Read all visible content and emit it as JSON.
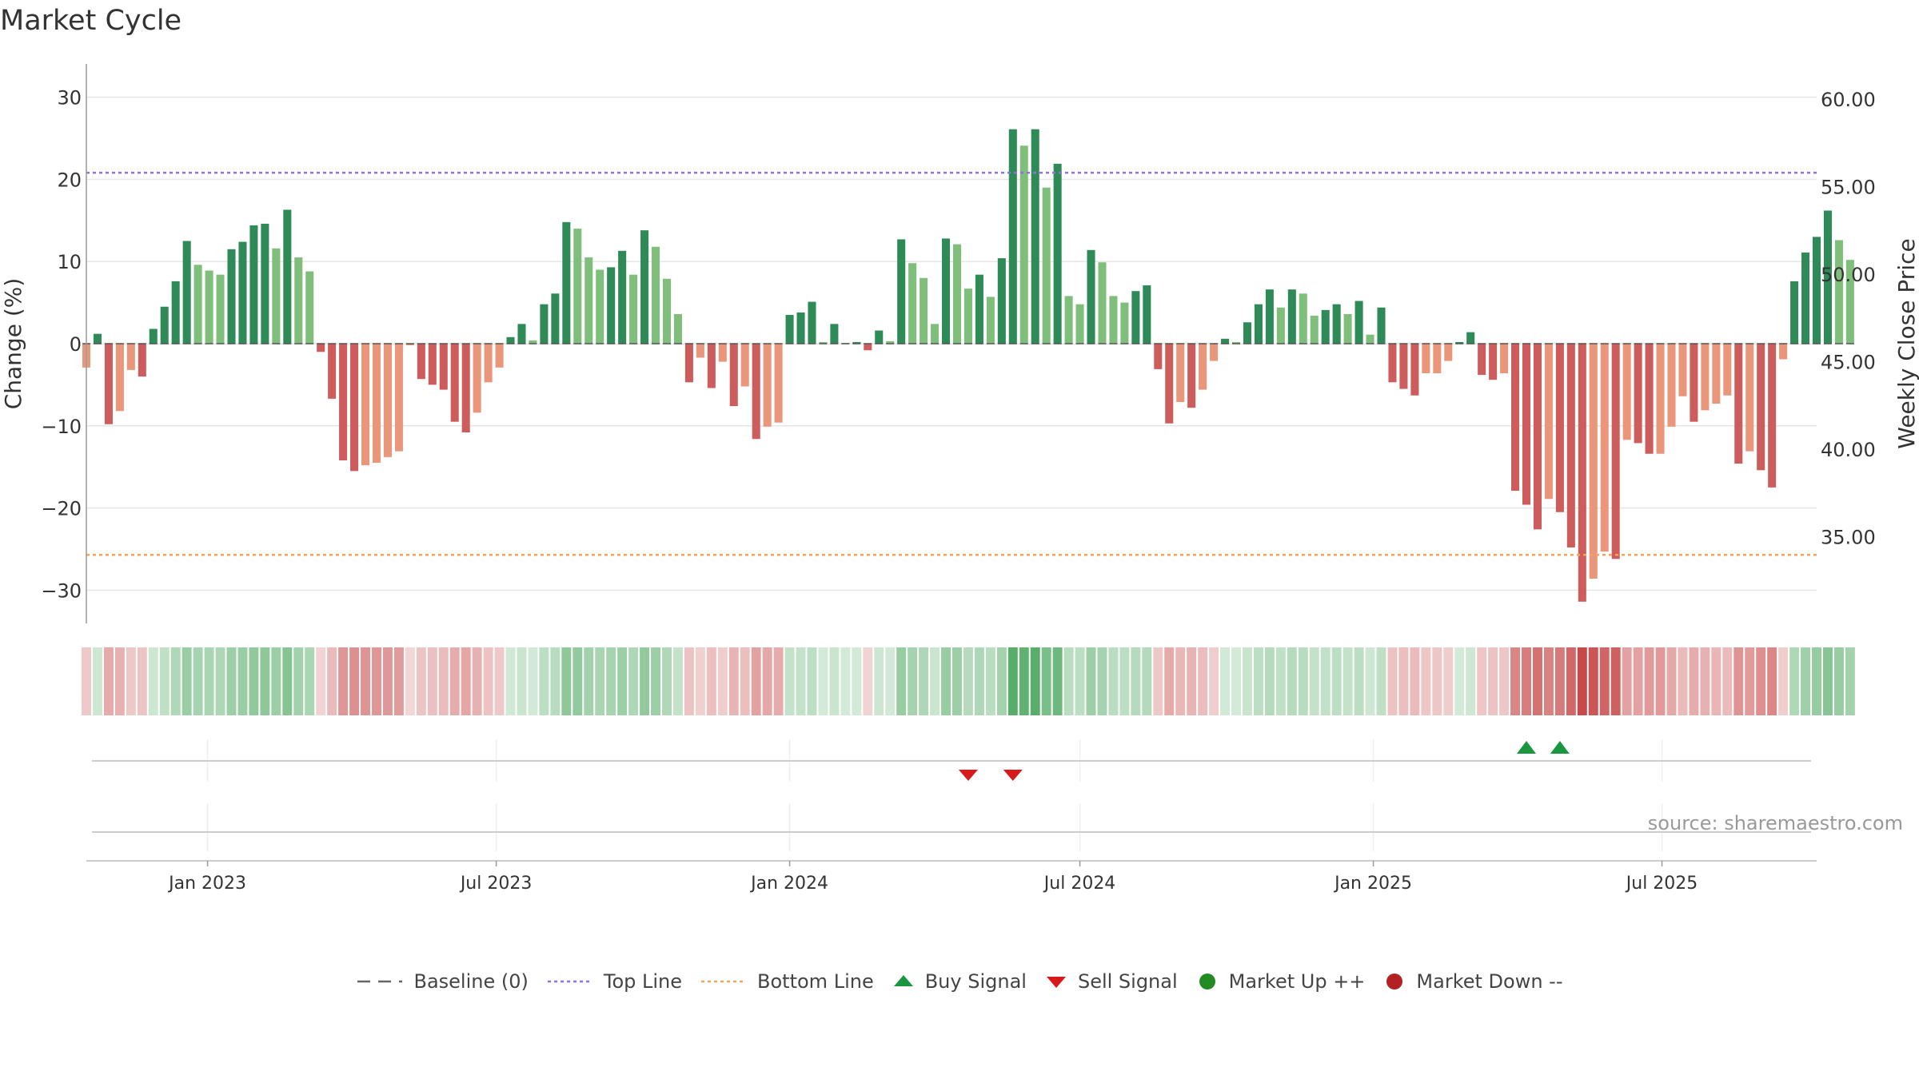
{
  "title": "Market Cycle",
  "source": "source: sharemaestro.com",
  "colors": {
    "up_dark": "#2e8b57",
    "up_light": "#7fbf7b",
    "down_dark": "#cd5c5c",
    "down_light": "#e9967a",
    "top_line": "#9370db",
    "bottom_line": "#f4a460",
    "buy": "#1a9641",
    "sell": "#d7191c",
    "market_up": "#228b22",
    "market_down": "#b22222"
  },
  "legend": [
    {
      "key": "baseline",
      "label": "Baseline (0)",
      "color": "#666666",
      "icon": "dash-line"
    },
    {
      "key": "top",
      "label": "Top Line",
      "color": "#9370db",
      "icon": "dotted-line"
    },
    {
      "key": "bottom",
      "label": "Bottom Line",
      "color": "#f4a460",
      "icon": "dotted-line"
    },
    {
      "key": "buy",
      "label": "Buy Signal",
      "color": "#1a9641",
      "icon": "triangle-up"
    },
    {
      "key": "sell",
      "label": "Sell Signal",
      "color": "#d7191c",
      "icon": "triangle-down"
    },
    {
      "key": "mup",
      "label": "Market Up ++",
      "color": "#228b22",
      "icon": "circle"
    },
    {
      "key": "mdown",
      "label": "Market Down --",
      "color": "#b22222",
      "icon": "circle"
    }
  ],
  "chart_data": {
    "type": "bar",
    "title": "Market Cycle",
    "ylabel": "Change (%)",
    "y2label": "Weekly Close Price",
    "ylim": [
      -34,
      34
    ],
    "y2lim": [
      33,
      62
    ],
    "yticks": [
      30,
      20,
      10,
      0,
      -10,
      -20,
      -30
    ],
    "yticklabels": [
      "30",
      "20",
      "10",
      "0",
      "−10",
      "−20",
      "−30"
    ],
    "y2ticks": [
      60,
      55,
      50,
      45,
      40,
      35
    ],
    "y2ticklabels": [
      "60.00",
      "55.00",
      "50.00",
      "45.00",
      "40.00",
      "35.00"
    ],
    "x_start": "2022-10-17",
    "x_end": "2025-10-06",
    "xticks": [
      {
        "date": "2023-01-01",
        "label": "Jan 2023"
      },
      {
        "date": "2023-07-01",
        "label": "Jul 2023"
      },
      {
        "date": "2024-01-01",
        "label": "Jan 2024"
      },
      {
        "date": "2024-07-01",
        "label": "Jul 2024"
      },
      {
        "date": "2025-01-01",
        "label": "Jan 2025"
      },
      {
        "date": "2025-07-01",
        "label": "Jul 2025"
      }
    ],
    "top_line": 20.8,
    "bottom_line": -25.7,
    "grid": true,
    "legend_position": "bottom",
    "series": [
      {
        "start_date": "2022-10-17",
        "interval": "weekly",
        "values": [
          -2.9,
          1.2,
          -9.8,
          -8.2,
          -3.2,
          -4,
          1.8,
          4.5,
          7.6,
          12.5,
          9.6,
          8.9,
          8.4,
          11.5,
          12.4,
          14.4,
          14.6,
          11.6,
          16.3,
          10.5,
          8.8,
          -1,
          -6.7,
          -14.2,
          -15.5,
          -14.8,
          -14.5,
          -13.8,
          -13.1,
          -0.2,
          -4.3,
          -5,
          -5.6,
          -9.5,
          -10.8,
          -8.4,
          -4.7,
          -2.9,
          0.8,
          2.4,
          0.4,
          4.8,
          6.1,
          14.8,
          14,
          10.5,
          9,
          9.3,
          11.3,
          8.4,
          13.8,
          11.8,
          7.9,
          3.6,
          -4.7,
          -1.7,
          -5.4,
          -2.2,
          -7.6,
          -5.2,
          -11.6,
          -10.1,
          -9.6,
          3.5,
          3.8,
          5.1,
          0.2,
          2.4,
          0.1,
          0.2,
          -0.8,
          1.6,
          0.3,
          12.7,
          9.8,
          8,
          2.4,
          12.8,
          12.1,
          6.7,
          8.4,
          5.7,
          10.4,
          26.1,
          24.1,
          26.1,
          19,
          21.9,
          5.8,
          4.8,
          11.4,
          9.9,
          5.8,
          5,
          6.4,
          7.1,
          -3.1,
          -9.7,
          -7.1,
          -7.8,
          -5.6,
          -2.1,
          0.6,
          0.2,
          2.6,
          4.8,
          6.6,
          4.4,
          6.6,
          6.1,
          3.4,
          4.1,
          4.8,
          3.6,
          5.2,
          1.1,
          4.4,
          -4.7,
          -5.5,
          -6.3,
          -3.6,
          -3.6,
          -2.1,
          0.2,
          1.4,
          -3.8,
          -4.4,
          -3.6,
          -17.9,
          -19.6,
          -22.6,
          -18.9,
          -20.5,
          -24.8,
          -31.4,
          -28.6,
          -25.3,
          -26.2,
          -11.7,
          -12.1,
          -13.4,
          -13.4,
          -10.1,
          -6.4,
          -9.5,
          -8.1,
          -7.3,
          -6.3,
          -14.6,
          -13.1,
          -15.4,
          -17.5,
          -1.9,
          7.6,
          11.1,
          13,
          16.2,
          12.6,
          10.2
        ]
      }
    ],
    "signals": [
      {
        "type": "sell",
        "date": "2024-04-22"
      },
      {
        "type": "sell",
        "date": "2024-05-20"
      },
      {
        "type": "buy",
        "date": "2025-04-07"
      },
      {
        "type": "buy",
        "date": "2025-04-28"
      }
    ]
  }
}
